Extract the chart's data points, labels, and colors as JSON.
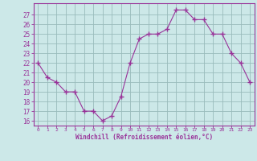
{
  "x": [
    0,
    1,
    2,
    3,
    4,
    5,
    6,
    7,
    8,
    9,
    10,
    11,
    12,
    13,
    14,
    15,
    16,
    17,
    18,
    19,
    20,
    21,
    22,
    23
  ],
  "y": [
    22,
    20.5,
    20,
    19,
    19,
    17,
    17,
    16,
    16.5,
    18.5,
    22,
    24.5,
    25,
    25,
    25.5,
    27.5,
    27.5,
    26.5,
    26.5,
    25,
    25,
    23,
    22,
    20
  ],
  "line_color": "#993399",
  "marker": "+",
  "marker_size": 4,
  "bg_color": "#cce8e8",
  "grid_color": "#99bbbb",
  "xlabel": "Windchill (Refroidissement éolien,°C)",
  "xlabel_color": "#993399",
  "tick_color": "#993399",
  "ylim": [
    15.5,
    28.2
  ],
  "xlim": [
    -0.5,
    23.5
  ],
  "yticks": [
    16,
    17,
    18,
    19,
    20,
    21,
    22,
    23,
    24,
    25,
    26,
    27
  ],
  "xticks": [
    0,
    1,
    2,
    3,
    4,
    5,
    6,
    7,
    8,
    9,
    10,
    11,
    12,
    13,
    14,
    15,
    16,
    17,
    18,
    19,
    20,
    21,
    22,
    23
  ]
}
